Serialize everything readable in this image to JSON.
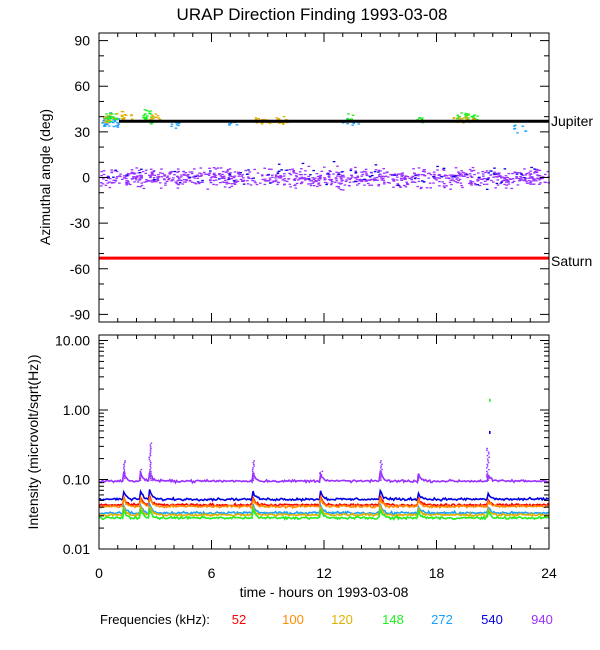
{
  "chart_data": [
    {
      "type": "scatter",
      "panel": "azimuth",
      "title": "URAP Direction Finding  1993-03-08",
      "ylabel": "Azimuthal angle (deg)",
      "ylim": [
        -95,
        95
      ],
      "yticks": [
        90,
        60,
        30,
        0,
        -30,
        -60,
        -90
      ],
      "xlim": [
        0,
        24
      ],
      "reference_lines": [
        {
          "name": "Jupiter",
          "value": 37,
          "color": "#000000"
        },
        {
          "name": "Saturn",
          "value": -53,
          "color": "#ff0000"
        }
      ],
      "clusters": [
        {
          "freq": "940",
          "x_range": [
            0,
            24
          ],
          "center": 0,
          "spread": 9,
          "count": 900
        },
        {
          "freq": "272",
          "x_range": [
            0.1,
            1.0
          ],
          "center": 37,
          "spread": 7,
          "count": 40
        },
        {
          "freq": "148",
          "x_range": [
            0.3,
            0.9
          ],
          "center": 40,
          "spread": 5,
          "count": 25
        },
        {
          "freq": "120",
          "x_range": [
            0.2,
            1.8
          ],
          "center": 40,
          "spread": 5,
          "count": 30
        },
        {
          "freq": "148",
          "x_range": [
            2.3,
            2.8
          ],
          "center": 40,
          "spread": 7,
          "count": 30
        },
        {
          "freq": "120",
          "x_range": [
            2.6,
            3.3
          ],
          "center": 40,
          "spread": 4,
          "count": 12
        },
        {
          "freq": "272",
          "x_range": [
            3.8,
            4.2
          ],
          "center": 35,
          "spread": 4,
          "count": 8
        },
        {
          "freq": "120",
          "x_range": [
            8.3,
            10.0
          ],
          "center": 38,
          "spread": 4,
          "count": 45
        },
        {
          "freq": "272",
          "x_range": [
            6.8,
            7.3
          ],
          "center": 36,
          "spread": 4,
          "count": 6
        },
        {
          "freq": "272",
          "x_range": [
            12.9,
            14.3
          ],
          "center": 37,
          "spread": 4,
          "count": 14
        },
        {
          "freq": "148",
          "x_range": [
            13.1,
            13.5
          ],
          "center": 40,
          "spread": 5,
          "count": 10
        },
        {
          "freq": "148",
          "x_range": [
            16.9,
            17.3
          ],
          "center": 38,
          "spread": 4,
          "count": 8
        },
        {
          "freq": "148",
          "x_range": [
            19.0,
            20.2
          ],
          "center": 40,
          "spread": 4,
          "count": 30
        },
        {
          "freq": "120",
          "x_range": [
            18.8,
            20.0
          ],
          "center": 38,
          "spread": 4,
          "count": 25
        },
        {
          "freq": "272",
          "x_range": [
            22.0,
            22.8
          ],
          "center": 33,
          "spread": 5,
          "count": 8
        },
        {
          "freq": "540",
          "x_range": [
            0,
            24
          ],
          "center": 2,
          "spread": 12,
          "count": 80
        }
      ]
    },
    {
      "type": "line",
      "panel": "intensity",
      "ylabel": "Intensity (microvolt/sqrt(Hz))",
      "xlabel": "time - hours on 1993-03-08",
      "yscale": "log",
      "ylim": [
        0.01,
        12
      ],
      "yticks": [
        10.0,
        1.0,
        0.1,
        0.01
      ],
      "yticklabels": [
        "10.00",
        "1.00",
        "0.10",
        "0.01"
      ],
      "xlim": [
        0,
        24
      ],
      "xticks": [
        0,
        6,
        12,
        18,
        24
      ],
      "series": [
        {
          "name": "940",
          "base": 0.095
        },
        {
          "name": "540",
          "base": 0.052
        },
        {
          "name": "52",
          "base": 0.043
        },
        {
          "name": "100",
          "base": 0.041
        },
        {
          "name": "272",
          "base": 0.033
        },
        {
          "name": "120",
          "base": 0.031
        },
        {
          "name": "148",
          "base": 0.028
        }
      ],
      "bursts_hours": [
        1.3,
        2.2,
        2.7,
        8.2,
        11.8,
        15.0,
        17.0,
        20.7
      ],
      "spike": {
        "freq": "148",
        "x": 20.8,
        "y": 1.45
      }
    }
  ],
  "legend": {
    "label": "Frequencies (kHz):",
    "items": [
      {
        "text": "52",
        "color": "#ff0000"
      },
      {
        "text": "100",
        "color": "#ff8c00"
      },
      {
        "text": "120",
        "color": "#e0b000"
      },
      {
        "text": "148",
        "color": "#22ee22"
      },
      {
        "text": "272",
        "color": "#1aa0ff"
      },
      {
        "text": "540",
        "color": "#0000e0"
      },
      {
        "text": "940",
        "color": "#9a30ff"
      }
    ]
  }
}
